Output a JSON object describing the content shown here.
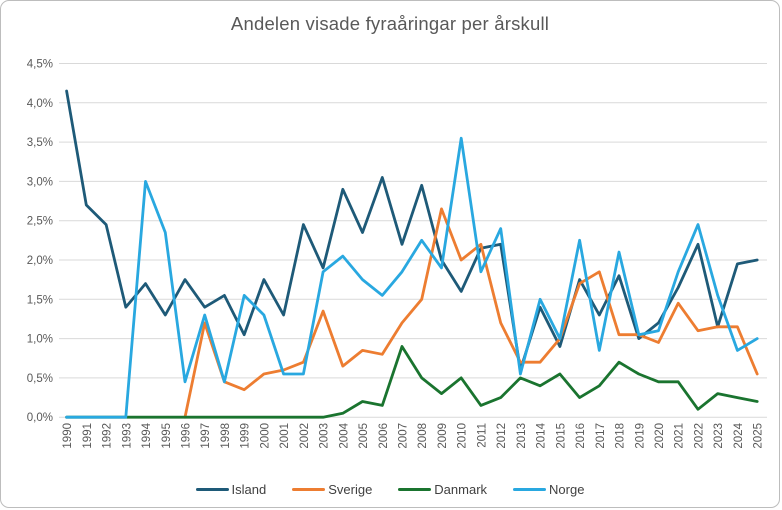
{
  "title": "Andelen visade fyraåringar per årskull",
  "y_axis": {
    "tick_labels": [
      "0,0%",
      "0,5%",
      "1,0%",
      "1,5%",
      "2,0%",
      "2,5%",
      "3,0%",
      "3,5%",
      "4,0%",
      "4,5%"
    ],
    "min": 0,
    "max": 4.5,
    "step": 0.5
  },
  "colors": {
    "island": "#1E5A78",
    "sverige": "#ED7D31",
    "danmark": "#1A742F",
    "norge": "#29A8E0",
    "gridline": "#D9D9D9",
    "tick_text": "#595959",
    "title_text": "#595959",
    "legend_text": "#404040"
  },
  "legend": [
    "Island",
    "Sverige",
    "Danmark",
    "Norge"
  ],
  "chart_data": {
    "type": "line",
    "title": "Andelen visade fyraåringar per årskull",
    "xlabel": "",
    "ylabel": "",
    "ylim": [
      0,
      4.5
    ],
    "grid": true,
    "legend_position": "bottom",
    "x": [
      1990,
      1991,
      1992,
      1993,
      1994,
      1995,
      1996,
      1997,
      1998,
      1999,
      2000,
      2001,
      2002,
      2003,
      2004,
      2005,
      2006,
      2007,
      2008,
      2009,
      2010,
      2011,
      2012,
      2013,
      2014,
      2015,
      2016,
      2017,
      2018,
      2019,
      2020,
      2021,
      2022,
      2023,
      2024,
      2025
    ],
    "series": [
      {
        "name": "Island",
        "color": "#1E5A78",
        "values": [
          4.15,
          2.7,
          2.45,
          1.4,
          1.7,
          1.3,
          1.75,
          1.4,
          1.55,
          1.05,
          1.75,
          1.3,
          2.45,
          1.9,
          2.9,
          2.35,
          3.05,
          2.2,
          2.95,
          2.0,
          1.6,
          2.15,
          2.2,
          0.6,
          1.4,
          0.9,
          1.75,
          1.3,
          1.8,
          1.0,
          1.2,
          1.65,
          2.2,
          1.15,
          1.95,
          2.0
        ]
      },
      {
        "name": "Sverige",
        "color": "#ED7D31",
        "values": [
          null,
          null,
          null,
          null,
          null,
          null,
          0.0,
          1.2,
          0.45,
          0.35,
          0.55,
          0.6,
          0.7,
          1.35,
          0.65,
          0.85,
          0.8,
          1.2,
          1.5,
          2.65,
          2.0,
          2.2,
          1.2,
          0.7,
          0.7,
          1.0,
          1.7,
          1.85,
          1.05,
          1.05,
          0.95,
          1.45,
          1.1,
          1.15,
          1.15,
          0.55
        ]
      },
      {
        "name": "Danmark",
        "color": "#1A742F",
        "values": [
          0,
          0,
          0,
          0,
          0,
          0,
          0,
          0,
          0,
          0,
          0,
          0,
          0,
          0,
          0.05,
          0.2,
          0.15,
          0.9,
          0.5,
          0.3,
          0.5,
          0.15,
          0.25,
          0.5,
          0.4,
          0.55,
          0.25,
          0.4,
          0.7,
          0.55,
          0.45,
          0.45,
          0.1,
          0.3,
          0.25,
          0.2
        ]
      },
      {
        "name": "Norge",
        "color": "#29A8E0",
        "values": [
          0,
          0,
          0,
          0,
          3.0,
          2.35,
          0.45,
          1.3,
          0.45,
          1.55,
          1.3,
          0.55,
          0.55,
          1.85,
          2.05,
          1.75,
          1.55,
          1.85,
          2.25,
          1.9,
          3.55,
          1.85,
          2.4,
          0.55,
          1.5,
          1.0,
          2.25,
          0.85,
          2.1,
          1.05,
          1.1,
          1.85,
          2.45,
          1.55,
          0.85,
          1.0
        ]
      }
    ]
  }
}
